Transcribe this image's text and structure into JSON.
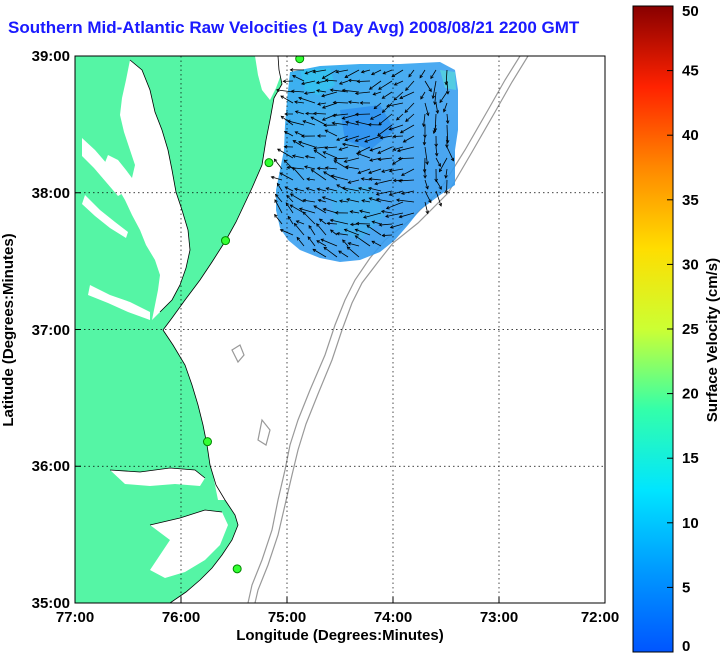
{
  "title": "Southern Mid-Atlantic Raw Velocities (1 Day Avg) 2008/08/21 2200 GMT",
  "map": {
    "x_axis": {
      "label": "Longitude (Degrees:Minutes)",
      "ticks": [
        "77:00",
        "76:00",
        "75:00",
        "74:00",
        "73:00",
        "72:00"
      ]
    },
    "y_axis": {
      "label": "Latitude (Degrees:Minutes)",
      "ticks": [
        "39:00",
        "38:00",
        "37:00",
        "36:00",
        "35:00"
      ]
    },
    "grid": "dotted",
    "land_color": "#55f5a5",
    "water_color": "#ffffff",
    "bathymetry_color": "#999999"
  },
  "colorbar": {
    "label": "Surface Velocity (cm/s)",
    "units": "cm/s",
    "range": [
      0,
      50
    ],
    "ticks": [
      "0",
      "5",
      "10",
      "15",
      "20",
      "25",
      "30",
      "35",
      "40",
      "45",
      "50"
    ],
    "colormap": "jet"
  },
  "chart_data": {
    "type": "map",
    "title": "Southern Mid-Atlantic Raw Velocities (1 Day Avg) 2008/08/21 2200 GMT",
    "xlabel": "Longitude (Degrees:Minutes)",
    "ylabel": "Latitude (Degrees:Minutes)",
    "xlim": [
      -77,
      -72
    ],
    "ylim": [
      35,
      39
    ],
    "velocity_field_region": {
      "lon_range": [
        -75.1,
        -73.3
      ],
      "lat_range": [
        37.45,
        39.0
      ]
    },
    "velocity_magnitude_range_cm_s": [
      2,
      12
    ],
    "stations": [
      {
        "lon": -74.88,
        "lat": 38.98
      },
      {
        "lon": -75.17,
        "lat": 38.22
      },
      {
        "lon": -75.58,
        "lat": 37.65
      },
      {
        "lon": -75.75,
        "lat": 36.18
      },
      {
        "lon": -75.47,
        "lat": 35.25
      }
    ]
  }
}
